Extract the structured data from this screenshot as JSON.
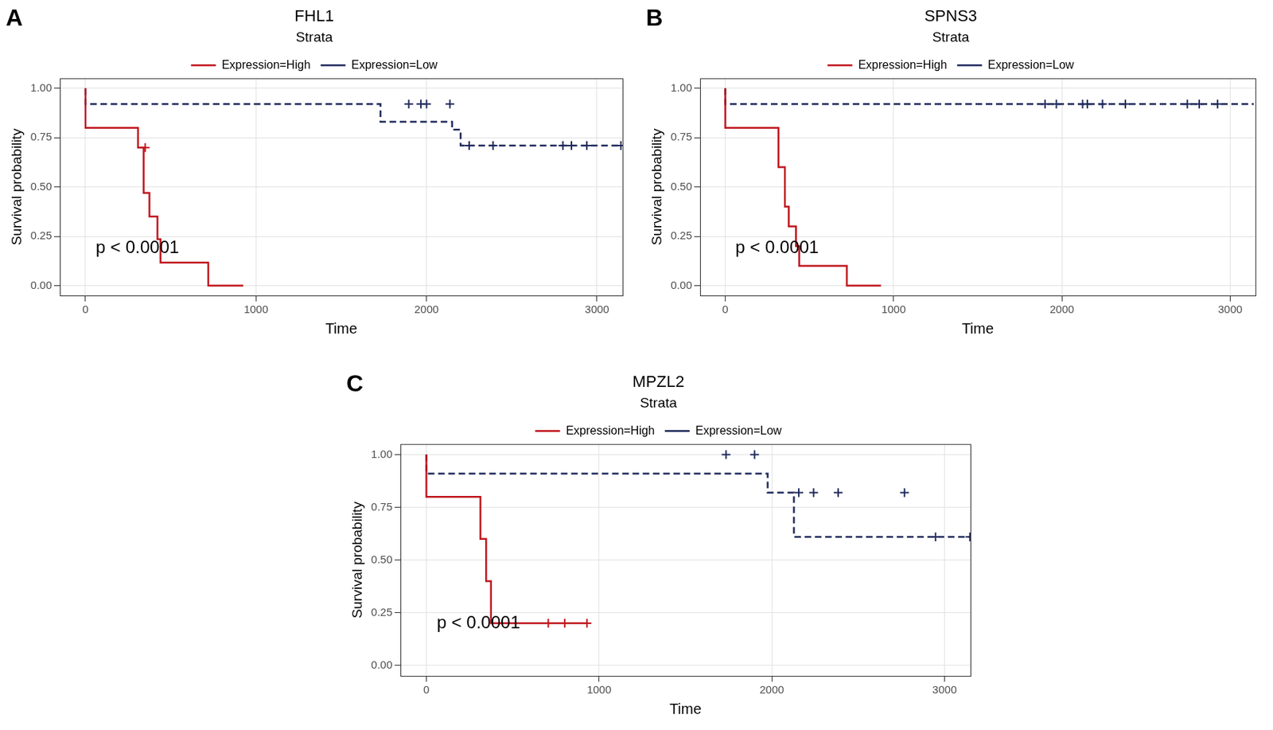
{
  "chart_data": [
    {
      "type": "line",
      "panel": "A",
      "title": "FHL1",
      "x_label": "Time",
      "y_label": "Survival probability",
      "legend": "top",
      "legend_title": "Strata",
      "grid": true,
      "marker": "cross",
      "xlim": [
        -150,
        3150
      ],
      "xticks": [
        0,
        1000,
        2000,
        3000
      ],
      "ylim": [
        -0.05,
        1.05
      ],
      "yticks": [
        {
          "value": 0,
          "label": "0.00"
        },
        {
          "value": 0.25,
          "label": "0.25"
        },
        {
          "value": 0.5,
          "label": "0.50"
        },
        {
          "value": 0.75,
          "label": "0.75"
        },
        {
          "value": 1,
          "label": "1.00"
        }
      ],
      "annotations": [
        {
          "text": "p < 0.0001",
          "x": 60,
          "y": 0.19
        }
      ],
      "series": [
        {
          "name": "Expression=High",
          "color": "#c0141c",
          "line_style": "solid",
          "x": [
            0,
            308,
            341,
            375,
            422,
            440,
            720,
            925
          ],
          "values": [
            1,
            0.8,
            0.7,
            0.47,
            0.35,
            0.235,
            0.117,
            0
          ],
          "censored": {
            "x": [
              350
            ],
            "values": [
              0.7
            ]
          }
        },
        {
          "name": "Expression=Low",
          "color": "#1f2a5c",
          "line_style": "dashed",
          "x": [
            0,
            1730,
            2150,
            2200,
            2240,
            3140
          ],
          "values": [
            1,
            0.92,
            0.83,
            0.79,
            0.71,
            0.71
          ],
          "censored": {
            "x": [
              1896,
              1967,
              2000,
              2137,
              2250,
              2390,
              2800,
              2850,
              2940,
              3140
            ],
            "values": [
              0.92,
              0.92,
              0.92,
              0.92,
              0.71,
              0.71,
              0.71,
              0.71,
              0.71,
              0.71
            ]
          }
        }
      ]
    },
    {
      "type": "line",
      "panel": "B",
      "title": "SPNS3",
      "x_label": "Time",
      "y_label": "Survival probability",
      "legend": "top",
      "legend_title": "Strata",
      "grid": true,
      "marker": "cross",
      "xlim": [
        -150,
        3150
      ],
      "xticks": [
        0,
        1000,
        2000,
        3000
      ],
      "ylim": [
        -0.05,
        1.05
      ],
      "yticks": [
        {
          "value": 0,
          "label": "0.00"
        },
        {
          "value": 0.25,
          "label": "0.25"
        },
        {
          "value": 0.5,
          "label": "0.50"
        },
        {
          "value": 0.75,
          "label": "0.75"
        },
        {
          "value": 1,
          "label": "1.00"
        }
      ],
      "annotations": [
        {
          "text": "p < 0.0001",
          "x": 60,
          "y": 0.19
        }
      ],
      "series": [
        {
          "name": "Expression=High",
          "color": "#c0141c",
          "line_style": "solid",
          "x": [
            0,
            316,
            354,
            377,
            420,
            439,
            722,
            925
          ],
          "values": [
            1,
            0.8,
            0.6,
            0.4,
            0.3,
            0.2,
            0.1,
            0
          ]
        },
        {
          "name": "Expression=Low",
          "color": "#1f2a5c",
          "line_style": "dashed",
          "x": [
            0,
            1722,
            3140
          ],
          "values": [
            1,
            0.92,
            0.92
          ],
          "censored": {
            "x": [
              1900,
              1967,
              2123,
              2151,
              2241,
              2377,
              2745,
              2816,
              2925
            ],
            "values": [
              0.92,
              0.92,
              0.92,
              0.92,
              0.92,
              0.92,
              0.92,
              0.92,
              0.92
            ]
          }
        }
      ]
    },
    {
      "type": "line",
      "panel": "C",
      "title": "MPZL2",
      "x_label": "Time",
      "y_label": "Survival probability",
      "legend": "top",
      "legend_title": "Strata",
      "grid": true,
      "marker": "cross",
      "xlim": [
        -150,
        3150
      ],
      "xticks": [
        0,
        1000,
        2000,
        3000
      ],
      "ylim": [
        -0.05,
        1.05
      ],
      "yticks": [
        {
          "value": 0,
          "label": "0.00"
        },
        {
          "value": 0.25,
          "label": "0.25"
        },
        {
          "value": 0.5,
          "label": "0.50"
        },
        {
          "value": 0.75,
          "label": "0.75"
        },
        {
          "value": 1,
          "label": "1.00"
        }
      ],
      "annotations": [
        {
          "text": "p < 0.0001",
          "x": 60,
          "y": 0.2
        }
      ],
      "series": [
        {
          "name": "Expression=High",
          "color": "#c0141c",
          "line_style": "solid",
          "x": [
            0,
            313,
            346,
            374,
            422,
            930
          ],
          "values": [
            1,
            0.8,
            0.6,
            0.4,
            0.2,
            0.2
          ],
          "censored": {
            "x": [
              706,
              801,
              930
            ],
            "values": [
              0.2,
              0.2,
              0.2
            ]
          }
        },
        {
          "name": "Expression=Low",
          "color": "#1f2a5c",
          "line_style": "dashed",
          "x": [
            0,
            1976,
            2128,
            2839,
            3147
          ],
          "values": [
            1,
            0.91,
            0.82,
            0.61,
            0.61
          ],
          "censored": {
            "x": [
              1735,
              1900,
              2156,
              2242,
              2384,
              2768,
              2948,
              3147
            ],
            "values": [
              1,
              1,
              0.82,
              0.82,
              0.82,
              0.82,
              0.61,
              0.61
            ]
          }
        }
      ]
    }
  ]
}
